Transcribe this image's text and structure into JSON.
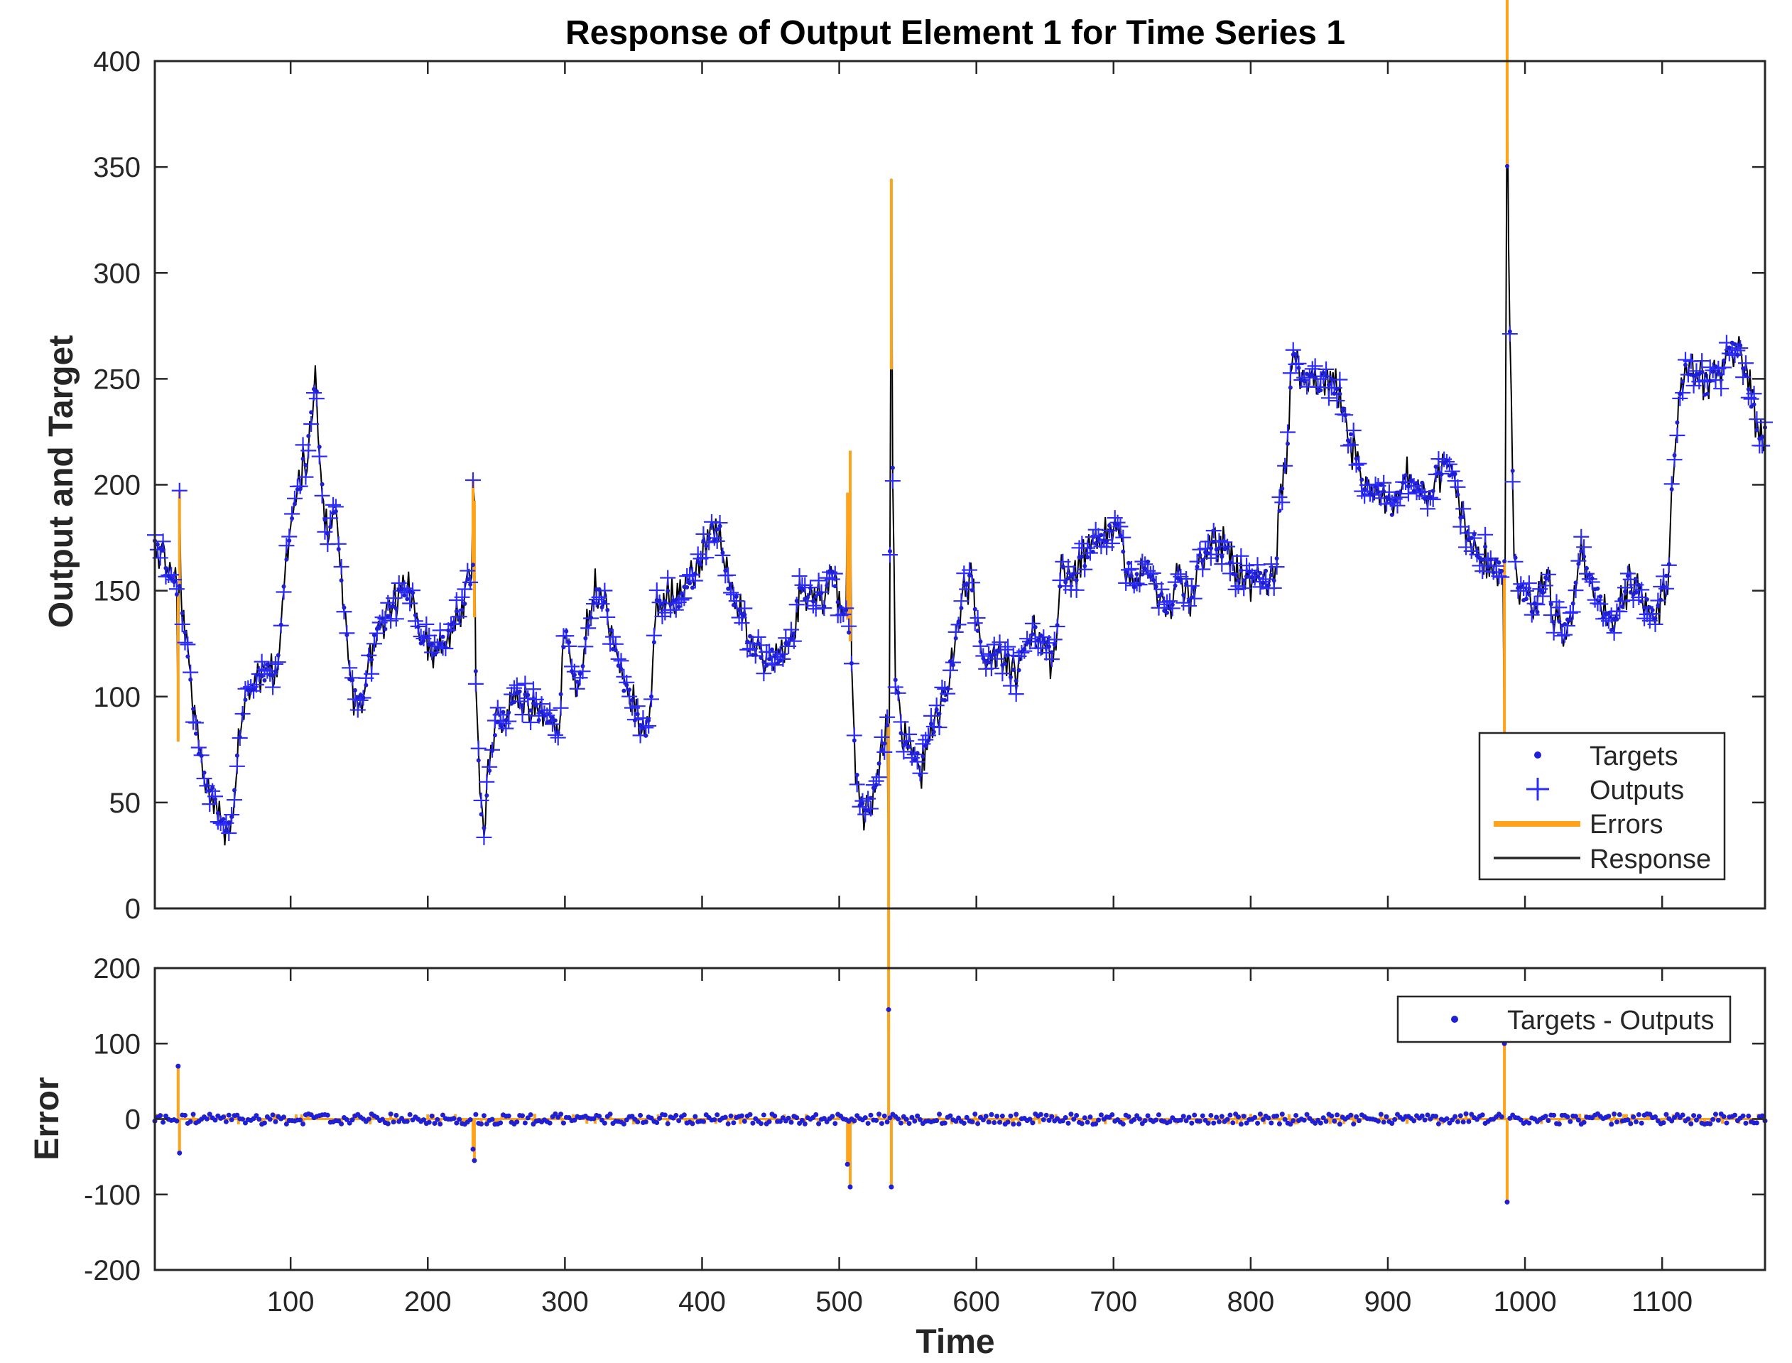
{
  "colors": {
    "targets": "#1f1fd6",
    "outputs": "#2b2bff",
    "errors": "#ffa31a",
    "response": "#000000",
    "axes": "#262626",
    "background": "#ffffff"
  },
  "chart_data": [
    {
      "type": "line",
      "title": "Response of Output Element 1 for Time Series 1",
      "xlabel": "",
      "ylabel": "Output and Target",
      "xlim": [
        1,
        1175
      ],
      "ylim": [
        0,
        400
      ],
      "xticks": [
        100,
        200,
        300,
        400,
        500,
        600,
        700,
        800,
        900,
        1000,
        1100
      ],
      "yticks": [
        0,
        50,
        100,
        150,
        200,
        250,
        300,
        350,
        400
      ],
      "grid": false,
      "legend": {
        "placement": "bottom-right",
        "entries": [
          "Targets",
          "Outputs",
          "Errors",
          "Response"
        ]
      },
      "series": [
        {
          "name": "Targets",
          "marker": "dot",
          "keypoints": {
            "x": [
              1,
              8,
              15,
              18,
              20,
              23,
              28,
              33,
              38,
              45,
              52,
              58,
              62,
              68,
              75,
              82,
              90,
              95,
              100,
              106,
              112,
              118,
              124,
              128,
              133,
              138,
              143,
              147,
              152,
              158,
              165,
              172,
              180,
              188,
              195,
              202,
              210,
              218,
              226,
              233,
              236,
              238,
              241,
              245,
              252,
              260,
              268,
              276,
              284,
              292,
              296,
              300,
              305,
              310,
              315,
              322,
              330,
              340,
              350,
              358,
              362,
              366,
              372,
              380,
              388,
              396,
              404,
              410,
              414,
              420,
              428,
              436,
              446,
              456,
              464,
              472,
              480,
              488,
              494,
              500,
              505,
              508,
              511,
              514,
              518,
              524,
              530,
              536,
              538,
              541,
              546,
              552,
              560,
              568,
              576,
              584,
              590,
              596,
              602,
              610,
              620,
              628,
              636,
              644,
              652,
              656,
              662,
              670,
              678,
              688,
              698,
              703,
              709,
              716,
              724,
              732,
              740,
              748,
              756,
              764,
              772,
              780,
              788,
              796,
              804,
              812,
              818,
              822,
              826,
              830,
              836,
              842,
              848,
              856,
              864,
              870,
              876,
              882,
              888,
              896,
              904,
              912,
              920,
              928,
              936,
              944,
              950,
              955,
              960,
              966,
              972,
              980,
              985,
              987,
              989,
              992,
              996,
              1002,
              1008,
              1012,
              1016,
              1022,
              1028,
              1034,
              1040,
              1046,
              1052,
              1058,
              1064,
              1070,
              1076,
              1082,
              1088,
              1094,
              1100,
              1105,
              1108,
              1112,
              1118,
              1126,
              1134,
              1142,
              1148,
              1154,
              1160,
              1166,
              1172,
              1175
            ],
            "y": [
              172,
              165,
              155,
              150,
              145,
              130,
              100,
              75,
              60,
              50,
              40,
              45,
              80,
              100,
              110,
              112,
              115,
              150,
              180,
              200,
              215,
              250,
              190,
              175,
              190,
              150,
              110,
              100,
              95,
              120,
              130,
              140,
              150,
              150,
              130,
              120,
              125,
              130,
              145,
              160,
              85,
              50,
              35,
              70,
              90,
              95,
              100,
              95,
              90,
              90,
              85,
              130,
              115,
              100,
              130,
              150,
              140,
              110,
              95,
              85,
              90,
              140,
              150,
              145,
              150,
              160,
              175,
              178,
              175,
              150,
              140,
              125,
              120,
              115,
              125,
              150,
              150,
              145,
              160,
              145,
              138,
              130,
              75,
              55,
              45,
              55,
              70,
              90,
              250,
              110,
              80,
              75,
              65,
              85,
              100,
              120,
              150,
              155,
              125,
              115,
              120,
              110,
              125,
              130,
              120,
              115,
              160,
              155,
              165,
              170,
              180,
              178,
              160,
              155,
              160,
              150,
              140,
              155,
              145,
              165,
              175,
              170,
              160,
              155,
              155,
              155,
              160,
              195,
              210,
              260,
              255,
              250,
              245,
              250,
              245,
              225,
              215,
              200,
              200,
              195,
              190,
              205,
              200,
              195,
              205,
              210,
              200,
              180,
              175,
              170,
              165,
              160,
              160,
              350,
              270,
              170,
              150,
              145,
              140,
              150,
              160,
              135,
              130,
              140,
              170,
              160,
              150,
              140,
              135,
              145,
              155,
              150,
              145,
              140,
              145,
              160,
              210,
              240,
              255,
              250,
              245,
              255,
              260,
              265,
              258,
              235,
              225,
              225
            ]
          }
        },
        {
          "name": "Outputs",
          "marker": "plus",
          "keypoints_note": "Outputs closely follow Targets; Errors = Targets - Outputs"
        },
        {
          "name": "Errors",
          "style": "orange line"
        },
        {
          "name": "Response",
          "style": "black line"
        }
      ]
    },
    {
      "type": "scatter",
      "title": "",
      "xlabel": "Time",
      "ylabel": "Error",
      "xlim": [
        1,
        1175
      ],
      "ylim": [
        -200,
        200
      ],
      "xticks": [
        100,
        200,
        300,
        400,
        500,
        600,
        700,
        800,
        900,
        1000,
        1100
      ],
      "yticks": [
        -200,
        -100,
        0,
        100,
        200
      ],
      "grid": false,
      "legend": {
        "placement": "top-right",
        "entries": [
          "Targets - Outputs"
        ]
      },
      "series": [
        {
          "name": "Targets - Outputs",
          "spikes": {
            "x": [
              18,
              19,
              233,
              234,
              506,
              508,
              536,
              538,
              985,
              987
            ],
            "y": [
              70,
              -45,
              -40,
              -55,
              -60,
              -90,
              145,
              -90,
              100,
              -110
            ]
          },
          "noise_range": [
            -20,
            20
          ]
        }
      ]
    }
  ]
}
